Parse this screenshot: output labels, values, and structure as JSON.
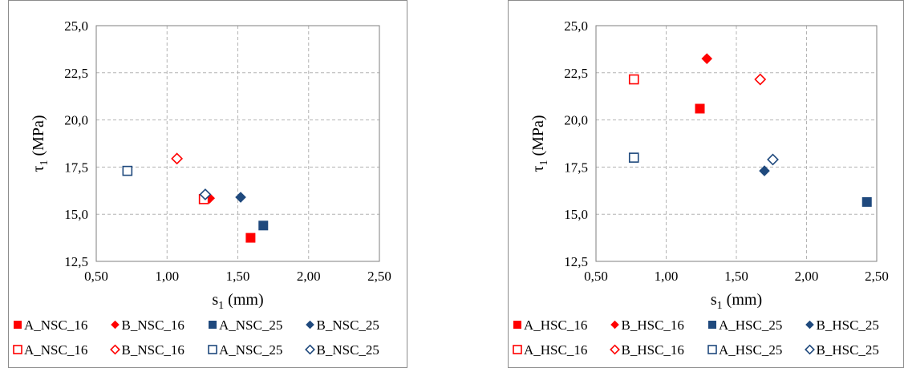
{
  "chart_data": [
    {
      "type": "scatter",
      "title": "",
      "xlabel": {
        "main": "s",
        "sub": "1",
        "unit": " (mm)"
      },
      "ylabel": {
        "main": "τ",
        "sub": "1",
        "unit": " (MPa)"
      },
      "xlim": [
        0.5,
        2.5
      ],
      "ylim": [
        12.5,
        25.0
      ],
      "xticks": [
        "0,50",
        "1,00",
        "1,50",
        "2,00",
        "2,50"
      ],
      "yticks": [
        "12,5",
        "15,0",
        "17,5",
        "20,0",
        "22,5",
        "25,0"
      ],
      "grid": true,
      "legend_position": "bottom",
      "series": [
        {
          "name": "A_NSC_16",
          "marker": "square",
          "filled": true,
          "color": "#FF0000",
          "points": [
            [
              1.59,
              13.75
            ]
          ]
        },
        {
          "name": "B_NSC_16",
          "marker": "diamond",
          "filled": true,
          "color": "#FF0000",
          "points": [
            [
              1.3,
              15.85
            ]
          ]
        },
        {
          "name": "A_NSC_25",
          "marker": "square",
          "filled": true,
          "color": "#1F497D",
          "points": [
            [
              1.68,
              14.4
            ]
          ]
        },
        {
          "name": "B_NSC_25",
          "marker": "diamond",
          "filled": true,
          "color": "#1F497D",
          "points": [
            [
              1.52,
              15.9
            ]
          ]
        },
        {
          "name": "A_NSC_16",
          "marker": "square",
          "filled": false,
          "color": "#FF0000",
          "points": [
            [
              1.26,
              15.8
            ]
          ]
        },
        {
          "name": "B_NSC_16",
          "marker": "diamond",
          "filled": false,
          "color": "#FF0000",
          "points": [
            [
              1.07,
              17.95
            ]
          ]
        },
        {
          "name": "A_NSC_25",
          "marker": "square",
          "filled": false,
          "color": "#1F497D",
          "points": [
            [
              0.72,
              17.3
            ]
          ]
        },
        {
          "name": "B_NSC_25",
          "marker": "diamond",
          "filled": false,
          "color": "#1F497D",
          "points": [
            [
              1.27,
              16.05
            ]
          ]
        }
      ]
    },
    {
      "type": "scatter",
      "title": "",
      "xlabel": {
        "main": "s",
        "sub": "1",
        "unit": " (mm)"
      },
      "ylabel": {
        "main": "τ",
        "sub": "1",
        "unit": " (MPa)"
      },
      "xlim": [
        0.5,
        2.5
      ],
      "ylim": [
        12.5,
        25.0
      ],
      "xticks": [
        "0,50",
        "1,00",
        "1,50",
        "2,00",
        "2,50"
      ],
      "yticks": [
        "12,5",
        "15,0",
        "17,5",
        "20,0",
        "22,5",
        "25,0"
      ],
      "grid": true,
      "legend_position": "bottom",
      "series": [
        {
          "name": "A_HSC_16",
          "marker": "square",
          "filled": true,
          "color": "#FF0000",
          "points": [
            [
              1.24,
              20.6
            ]
          ]
        },
        {
          "name": "B_HSC_16",
          "marker": "diamond",
          "filled": true,
          "color": "#FF0000",
          "points": [
            [
              1.29,
              23.25
            ]
          ]
        },
        {
          "name": "A_HSC_25",
          "marker": "square",
          "filled": true,
          "color": "#1F497D",
          "points": [
            [
              2.43,
              15.65
            ]
          ]
        },
        {
          "name": "B_HSC_25",
          "marker": "diamond",
          "filled": true,
          "color": "#1F497D",
          "points": [
            [
              1.7,
              17.3
            ]
          ]
        },
        {
          "name": "A_HSC_16",
          "marker": "square",
          "filled": false,
          "color": "#FF0000",
          "points": [
            [
              0.77,
              22.15
            ]
          ]
        },
        {
          "name": "B_HSC_16",
          "marker": "diamond",
          "filled": false,
          "color": "#FF0000",
          "points": [
            [
              1.67,
              22.15
            ]
          ]
        },
        {
          "name": "A_HSC_25",
          "marker": "square",
          "filled": false,
          "color": "#1F497D",
          "points": [
            [
              0.77,
              18.0
            ]
          ]
        },
        {
          "name": "B_HSC_25",
          "marker": "diamond",
          "filled": false,
          "color": "#1F497D",
          "points": [
            [
              1.76,
              17.9
            ]
          ]
        }
      ]
    }
  ]
}
